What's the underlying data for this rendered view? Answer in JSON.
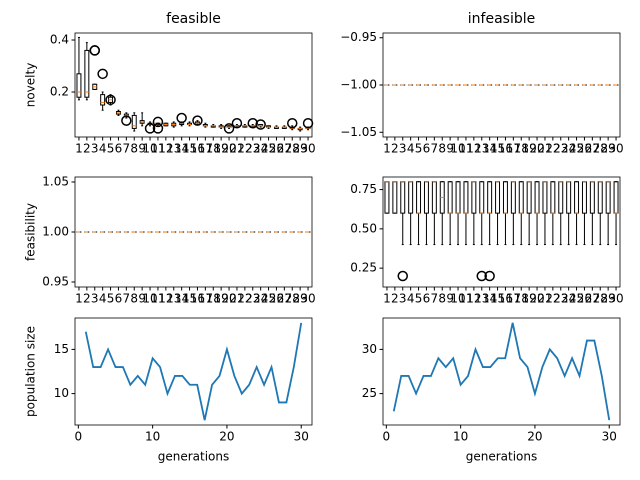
{
  "chart_data": [
    {
      "type": "box",
      "title": "feasible",
      "ylabel": "novelty",
      "categories": [
        "1",
        "2",
        "3",
        "4",
        "5",
        "6",
        "7",
        "8",
        "9",
        "10",
        "11",
        "12",
        "13",
        "14",
        "15",
        "16",
        "17",
        "18",
        "19",
        "20",
        "21",
        "22",
        "23",
        "24",
        "25",
        "26",
        "27",
        "28",
        "29",
        "30"
      ],
      "whislo": [
        0.17,
        0.17,
        0.21,
        0.13,
        0.15,
        0.11,
        0.1,
        0.05,
        0.07,
        0.07,
        0.07,
        0.07,
        0.065,
        0.07,
        0.07,
        0.075,
        0.065,
        0.065,
        0.06,
        0.06,
        0.065,
        0.065,
        0.065,
        0.065,
        0.06,
        0.06,
        0.06,
        0.055,
        0.05,
        0.055
      ],
      "q1": [
        0.18,
        0.18,
        0.21,
        0.15,
        0.16,
        0.115,
        0.105,
        0.06,
        0.08,
        0.075,
        0.075,
        0.07,
        0.07,
        0.075,
        0.075,
        0.08,
        0.07,
        0.065,
        0.065,
        0.065,
        0.07,
        0.065,
        0.065,
        0.07,
        0.065,
        0.06,
        0.06,
        0.06,
        0.055,
        0.06
      ],
      "median": [
        0.2,
        0.2,
        0.22,
        0.16,
        0.17,
        0.12,
        0.11,
        0.07,
        0.085,
        0.075,
        0.075,
        0.075,
        0.075,
        0.08,
        0.075,
        0.08,
        0.07,
        0.07,
        0.065,
        0.065,
        0.07,
        0.07,
        0.07,
        0.07,
        0.065,
        0.065,
        0.065,
        0.06,
        0.06,
        0.06
      ],
      "q3": [
        0.27,
        0.36,
        0.23,
        0.19,
        0.18,
        0.125,
        0.115,
        0.11,
        0.09,
        0.08,
        0.08,
        0.08,
        0.08,
        0.08,
        0.08,
        0.085,
        0.075,
        0.07,
        0.07,
        0.07,
        0.07,
        0.07,
        0.07,
        0.075,
        0.07,
        0.065,
        0.065,
        0.065,
        0.06,
        0.065
      ],
      "whishi": [
        0.41,
        0.39,
        0.23,
        0.2,
        0.19,
        0.13,
        0.12,
        0.12,
        0.12,
        0.085,
        0.08,
        0.08,
        0.085,
        0.085,
        0.085,
        0.09,
        0.08,
        0.075,
        0.075,
        0.07,
        0.075,
        0.075,
        0.075,
        0.075,
        0.07,
        0.07,
        0.07,
        0.07,
        0.065,
        0.065
      ],
      "fliers": [
        [],
        [],
        [
          0.36,
          0.36
        ],
        [
          0.27
        ],
        [
          0.17
        ],
        [],
        [
          0.09
        ],
        [],
        [],
        [
          0.06
        ],
        [
          0.085,
          0.06
        ],
        [],
        [],
        [
          0.1
        ],
        [],
        [
          0.09
        ],
        [],
        [],
        [],
        [
          0.06
        ],
        [
          0.08
        ],
        [],
        [
          0.08
        ],
        [
          0.075
        ],
        [],
        [],
        [],
        [
          0.08
        ],
        [],
        [
          0.08
        ]
      ],
      "ylim": [
        0.027,
        0.427
      ],
      "yticks": [
        0.2,
        0.4
      ]
    },
    {
      "type": "box",
      "title": "infeasible",
      "categories": [
        "1",
        "2",
        "3",
        "4",
        "5",
        "6",
        "7",
        "8",
        "9",
        "10",
        "11",
        "12",
        "13",
        "14",
        "15",
        "16",
        "17",
        "18",
        "19",
        "20",
        "21",
        "22",
        "23",
        "24",
        "25",
        "26",
        "27",
        "28",
        "29",
        "30"
      ],
      "whislo": [
        -1,
        -1,
        -1,
        -1,
        -1,
        -1,
        -1,
        -1,
        -1,
        -1,
        -1,
        -1,
        -1,
        -1,
        -1,
        -1,
        -1,
        -1,
        -1,
        -1,
        -1,
        -1,
        -1,
        -1,
        -1,
        -1,
        -1,
        -1,
        -1,
        -1
      ],
      "q1": [
        -1,
        -1,
        -1,
        -1,
        -1,
        -1,
        -1,
        -1,
        -1,
        -1,
        -1,
        -1,
        -1,
        -1,
        -1,
        -1,
        -1,
        -1,
        -1,
        -1,
        -1,
        -1,
        -1,
        -1,
        -1,
        -1,
        -1,
        -1,
        -1,
        -1
      ],
      "median": [
        -1,
        -1,
        -1,
        -1,
        -1,
        -1,
        -1,
        -1,
        -1,
        -1,
        -1,
        -1,
        -1,
        -1,
        -1,
        -1,
        -1,
        -1,
        -1,
        -1,
        -1,
        -1,
        -1,
        -1,
        -1,
        -1,
        -1,
        -1,
        -1,
        -1
      ],
      "q3": [
        -1,
        -1,
        -1,
        -1,
        -1,
        -1,
        -1,
        -1,
        -1,
        -1,
        -1,
        -1,
        -1,
        -1,
        -1,
        -1,
        -1,
        -1,
        -1,
        -1,
        -1,
        -1,
        -1,
        -1,
        -1,
        -1,
        -1,
        -1,
        -1,
        -1
      ],
      "whishi": [
        -1,
        -1,
        -1,
        -1,
        -1,
        -1,
        -1,
        -1,
        -1,
        -1,
        -1,
        -1,
        -1,
        -1,
        -1,
        -1,
        -1,
        -1,
        -1,
        -1,
        -1,
        -1,
        -1,
        -1,
        -1,
        -1,
        -1,
        -1,
        -1,
        -1
      ],
      "fliers": [
        [],
        [],
        [],
        [],
        [],
        [],
        [],
        [],
        [],
        [],
        [],
        [],
        [],
        [],
        [],
        [],
        [],
        [],
        [],
        [],
        [],
        [],
        [],
        [],
        [],
        [],
        [],
        [],
        [],
        []
      ],
      "ylim": [
        -1.055,
        -0.945
      ],
      "yticks": [
        {
          "value": -0.95,
          "label": "−0.95"
        },
        {
          "value": -1,
          "label": "−1.00"
        },
        {
          "value": -1.05,
          "label": "−1.05"
        }
      ]
    },
    {
      "type": "box",
      "ylabel": "feasibility",
      "categories": [
        "1",
        "2",
        "3",
        "4",
        "5",
        "6",
        "7",
        "8",
        "9",
        "10",
        "11",
        "12",
        "13",
        "14",
        "15",
        "16",
        "17",
        "18",
        "19",
        "20",
        "21",
        "22",
        "23",
        "24",
        "25",
        "26",
        "27",
        "28",
        "29",
        "30"
      ],
      "whislo": [
        1,
        1,
        1,
        1,
        1,
        1,
        1,
        1,
        1,
        1,
        1,
        1,
        1,
        1,
        1,
        1,
        1,
        1,
        1,
        1,
        1,
        1,
        1,
        1,
        1,
        1,
        1,
        1,
        1,
        1
      ],
      "q1": [
        1,
        1,
        1,
        1,
        1,
        1,
        1,
        1,
        1,
        1,
        1,
        1,
        1,
        1,
        1,
        1,
        1,
        1,
        1,
        1,
        1,
        1,
        1,
        1,
        1,
        1,
        1,
        1,
        1,
        1
      ],
      "median": [
        1,
        1,
        1,
        1,
        1,
        1,
        1,
        1,
        1,
        1,
        1,
        1,
        1,
        1,
        1,
        1,
        1,
        1,
        1,
        1,
        1,
        1,
        1,
        1,
        1,
        1,
        1,
        1,
        1,
        1
      ],
      "q3": [
        1,
        1,
        1,
        1,
        1,
        1,
        1,
        1,
        1,
        1,
        1,
        1,
        1,
        1,
        1,
        1,
        1,
        1,
        1,
        1,
        1,
        1,
        1,
        1,
        1,
        1,
        1,
        1,
        1,
        1
      ],
      "whishi": [
        1,
        1,
        1,
        1,
        1,
        1,
        1,
        1,
        1,
        1,
        1,
        1,
        1,
        1,
        1,
        1,
        1,
        1,
        1,
        1,
        1,
        1,
        1,
        1,
        1,
        1,
        1,
        1,
        1,
        1
      ],
      "fliers": [
        [],
        [],
        [],
        [],
        [],
        [],
        [],
        [],
        [],
        [],
        [],
        [],
        [],
        [],
        [],
        [],
        [],
        [],
        [],
        [],
        [],
        [],
        [],
        [],
        [],
        [],
        [],
        [],
        [],
        []
      ],
      "ylim": [
        0.945,
        1.055
      ],
      "yticks": [
        0.95,
        {
          "value": 1,
          "label": "1.00"
        },
        1.05
      ]
    },
    {
      "type": "box",
      "categories": [
        "1",
        "2",
        "3",
        "4",
        "5",
        "6",
        "7",
        "8",
        "9",
        "10",
        "11",
        "12",
        "13",
        "14",
        "15",
        "16",
        "17",
        "18",
        "19",
        "20",
        "21",
        "22",
        "23",
        "24",
        "25",
        "26",
        "27",
        "28",
        "29",
        "30"
      ],
      "whislo": [
        0.6,
        0.6,
        0.4,
        0.4,
        0.4,
        0.4,
        0.4,
        0.4,
        0.4,
        0.4,
        0.4,
        0.4,
        0.4,
        0.4,
        0.4,
        0.4,
        0.4,
        0.4,
        0.4,
        0.4,
        0.4,
        0.4,
        0.4,
        0.4,
        0.4,
        0.4,
        0.4,
        0.4,
        0.4,
        0.4
      ],
      "q1": [
        0.6,
        0.6,
        0.6,
        0.6,
        0.6,
        0.6,
        0.6,
        0.6,
        0.6,
        0.6,
        0.6,
        0.6,
        0.6,
        0.6,
        0.6,
        0.6,
        0.6,
        0.6,
        0.6,
        0.6,
        0.6,
        0.6,
        0.6,
        0.6,
        0.6,
        0.6,
        0.6,
        0.6,
        0.6,
        0.6
      ],
      "median": [
        0.8,
        0.8,
        0.8,
        0.8,
        0.6,
        0.8,
        0.8,
        0.7,
        0.6,
        0.6,
        0.6,
        0.8,
        0.6,
        0.6,
        0.8,
        0.6,
        0.8,
        0.6,
        0.8,
        0.6,
        0.8,
        0.6,
        0.8,
        0.8,
        0.6,
        0.8,
        0.8,
        0.8,
        0.8,
        0.6
      ],
      "q3": [
        0.8,
        0.8,
        0.8,
        0.8,
        0.8,
        0.8,
        0.8,
        0.8,
        0.8,
        0.8,
        0.8,
        0.8,
        0.8,
        0.8,
        0.8,
        0.8,
        0.8,
        0.8,
        0.8,
        0.8,
        0.8,
        0.8,
        0.8,
        0.8,
        0.8,
        0.8,
        0.8,
        0.8,
        0.8,
        0.8
      ],
      "whishi": [
        0.8,
        0.8,
        0.8,
        0.8,
        0.8,
        0.8,
        0.8,
        0.8,
        0.8,
        0.8,
        0.8,
        0.8,
        0.8,
        0.8,
        0.8,
        0.8,
        0.8,
        0.8,
        0.8,
        0.8,
        0.8,
        0.8,
        0.8,
        0.8,
        0.8,
        0.8,
        0.8,
        0.8,
        0.8,
        0.8
      ],
      "fliers": [
        [],
        [],
        [
          0.2
        ],
        [],
        [],
        [],
        [],
        [],
        [],
        [],
        [],
        [],
        [
          0.2
        ],
        [
          0.2
        ],
        [],
        [],
        [],
        [],
        [],
        [],
        [],
        [],
        [],
        [],
        [],
        [],
        [],
        [],
        [],
        []
      ],
      "ylim": [
        0.13,
        0.83
      ],
      "yticks": [
        0.25,
        {
          "value": 0.5,
          "label": "0.50"
        },
        0.75
      ]
    },
    {
      "type": "line",
      "ylabel": "population size",
      "xlabel": "generations",
      "color": "#1f77b4",
      "x": [
        1,
        2,
        3,
        4,
        5,
        6,
        7,
        8,
        9,
        10,
        11,
        12,
        13,
        14,
        15,
        16,
        17,
        18,
        19,
        20,
        21,
        22,
        23,
        24,
        25,
        26,
        27,
        28,
        29,
        30
      ],
      "values": [
        17,
        13,
        13,
        15,
        13,
        13,
        11,
        12,
        11,
        14,
        13,
        10,
        12,
        12,
        11,
        11,
        7,
        11,
        12,
        15,
        12,
        10,
        11,
        13,
        11,
        13,
        9,
        9,
        13,
        18
      ],
      "xlim": [
        -0.45,
        31.45
      ],
      "xticks": [
        0,
        10,
        20,
        30
      ],
      "ylim": [
        6.45,
        18.55
      ],
      "yticks": [
        10,
        15
      ]
    },
    {
      "type": "line",
      "xlabel": "generations",
      "color": "#1f77b4",
      "x": [
        1,
        2,
        3,
        4,
        5,
        6,
        7,
        8,
        9,
        10,
        11,
        12,
        13,
        14,
        15,
        16,
        17,
        18,
        19,
        20,
        21,
        22,
        23,
        24,
        25,
        26,
        27,
        28,
        29,
        30
      ],
      "values": [
        23,
        27,
        27,
        25,
        27,
        27,
        29,
        28,
        29,
        26,
        27,
        30,
        28,
        28,
        29,
        29,
        33,
        29,
        28,
        25,
        28,
        30,
        29,
        27,
        29,
        27,
        31,
        31,
        27,
        22
      ],
      "xlim": [
        -0.45,
        31.45
      ],
      "xticks": [
        0,
        10,
        20,
        30
      ],
      "ylim": [
        21.45,
        33.55
      ],
      "yticks": [
        25,
        30
      ]
    }
  ]
}
